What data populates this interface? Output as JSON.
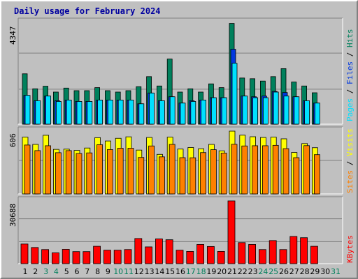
{
  "title": "Daily usage for February 2024",
  "colors": {
    "hits": "#00805c",
    "files": "#0038e0",
    "pages": "#00e0ff",
    "visits": "#ffff00",
    "sites": "#ff8000",
    "kbytes": "#ff0000",
    "weekend_label": "#00805c",
    "title": "#0000a0"
  },
  "chart_data": {
    "type": "bar",
    "categories": [
      "1",
      "2",
      "3",
      "4",
      "5",
      "6",
      "7",
      "8",
      "9",
      "10",
      "11",
      "12",
      "13",
      "14",
      "15",
      "16",
      "17",
      "18",
      "19",
      "20",
      "21",
      "22",
      "23",
      "24",
      "25",
      "26",
      "27",
      "28",
      "29",
      "30",
      "31"
    ],
    "weekend_days": [
      "3",
      "4",
      "10",
      "11",
      "17",
      "18",
      "24",
      "25",
      "31"
    ],
    "panels": [
      {
        "id": "top",
        "max_label": "4347",
        "ymax": 4347,
        "legend": [
          {
            "text": "Pages",
            "color": "#00e0ff"
          },
          {
            "text": " / ",
            "color": "#000000"
          },
          {
            "text": "Files",
            "color": "#0038e0"
          },
          {
            "text": " / ",
            "color": "#000000"
          },
          {
            "text": "Hits",
            "color": "#00805c"
          }
        ],
        "series": [
          {
            "name": "Hits",
            "values": [
              2150,
              1510,
              1620,
              1370,
              1540,
              1430,
              1430,
              1560,
              1430,
              1370,
              1430,
              1600,
              2030,
              1630,
              2780,
              1370,
              1510,
              1370,
              1720,
              1560,
              4300,
              1970,
              1940,
              1840,
              2030,
              2370,
              1800,
              1630,
              1340,
              null,
              null
            ]
          },
          {
            "name": "Files",
            "values": [
              1230,
              1000,
              1200,
              1000,
              1030,
              970,
              970,
              1030,
              1030,
              1030,
              1030,
              870,
              1330,
              1000,
              1170,
              900,
              1000,
              1030,
              1130,
              1130,
              3200,
              1200,
              1170,
              1200,
              1400,
              1350,
              1170,
              1000,
              900,
              null,
              null
            ]
          },
          {
            "name": "Pages",
            "values": [
              1230,
              1000,
              1200,
              970,
              1030,
              970,
              970,
              1030,
              1030,
              1030,
              1030,
              870,
              1330,
              1000,
              1170,
              900,
              970,
              1030,
              1130,
              1130,
              2600,
              1200,
              1130,
              1130,
              1370,
              1200,
              1170,
              1000,
              900,
              null,
              null
            ]
          }
        ]
      },
      {
        "id": "middle",
        "max_label": "606",
        "ymax": 606,
        "legend": [
          {
            "text": "Sites",
            "color": "#ff8000"
          },
          {
            "text": " / ",
            "color": "#000000"
          },
          {
            "text": "Visits",
            "color": "#ffff00"
          }
        ],
        "series": [
          {
            "name": "Visits",
            "values": [
              548,
              478,
              566,
              430,
              432,
              420,
              443,
              543,
              511,
              537,
              551,
              423,
              545,
              382,
              548,
              433,
              448,
              436,
              478,
              416,
              606,
              567,
              552,
              545,
              548,
              532,
              400,
              486,
              446,
              null,
              null
            ]
          },
          {
            "name": "Sites",
            "values": [
              472,
              418,
              465,
              398,
              418,
              390,
              396,
              475,
              428,
              441,
              441,
              352,
              463,
              358,
              478,
              350,
              349,
              399,
              427,
              394,
              479,
              463,
              465,
              465,
              469,
              437,
              350,
              466,
              379,
              null,
              null
            ]
          }
        ]
      },
      {
        "id": "bottom",
        "max_label": "30688",
        "ymax": 30688,
        "legend": [
          {
            "text": "KBytes",
            "color": "#ff0000"
          }
        ],
        "series": [
          {
            "name": "KBytes",
            "values": [
              9600,
              7900,
              6900,
              5300,
              7000,
              5900,
              5900,
              8500,
              6600,
              6600,
              6900,
              12300,
              8200,
              12100,
              11700,
              6600,
              6000,
              9400,
              8400,
              6000,
              30688,
              10300,
              9400,
              6900,
              11300,
              6900,
              13300,
              12700,
              8500,
              null,
              null
            ]
          }
        ]
      }
    ]
  }
}
